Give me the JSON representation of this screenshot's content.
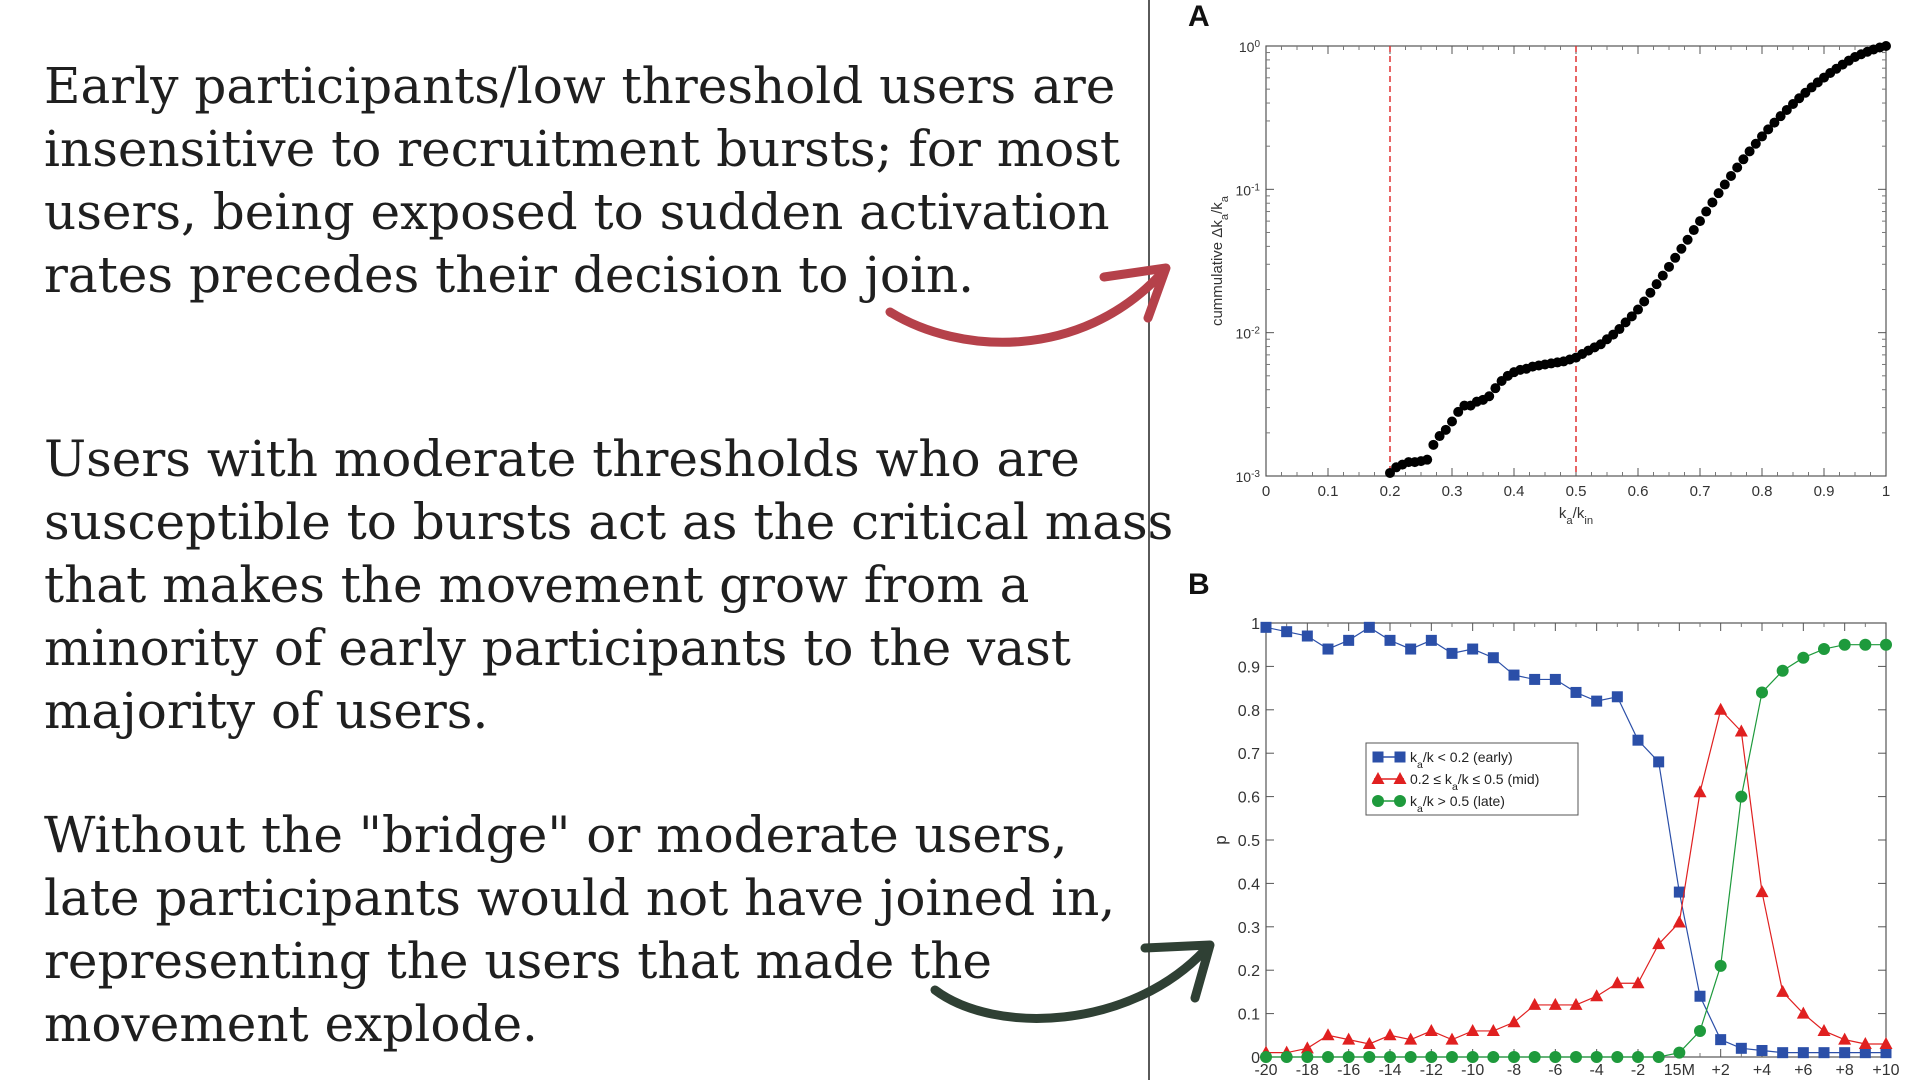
{
  "text": {
    "para1": [
      "Early participants/low threshold users are",
      "insensitive to recruitment bursts; for most",
      "users, being exposed to sudden activation",
      "rates precedes their decision to join."
    ],
    "para2": [
      "Users with moderate thresholds who are",
      "susceptible to bursts act as the critical mass",
      "that makes the movement grow from a",
      "minority of early participants to the vast",
      "majority of users."
    ],
    "para3": [
      "Without the \"bridge\" or moderate users,",
      "late participants would not have joined in,",
      "representing the users that made the",
      "movement explode."
    ]
  },
  "colors": {
    "arrow_top": "#b5414a",
    "arrow_bottom": "#2f4034",
    "early": "#2b4fa8",
    "mid": "#e02020",
    "late": "#1e9a3c",
    "threshold_line": "#e03030"
  },
  "chart_data": [
    {
      "panel": "A",
      "type": "scatter",
      "xlabel": "k_a/k_in",
      "ylabel": "cummulative Δk_a/k_a",
      "xlim": [
        0,
        1
      ],
      "ylim": [
        0.001,
        1
      ],
      "yscale": "log",
      "xticks": [
        "0",
        "0.1",
        "0.2",
        "0.3",
        "0.4",
        "0.5",
        "0.6",
        "0.7",
        "0.8",
        "0.9",
        "1"
      ],
      "yticks": [
        {
          "base": "10",
          "exp": "-3"
        },
        {
          "base": "10",
          "exp": "-2"
        },
        {
          "base": "10",
          "exp": "-1"
        },
        {
          "base": "10",
          "exp": "0"
        }
      ],
      "vlines": [
        0.2,
        0.5
      ],
      "x": [
        0.2,
        0.21,
        0.22,
        0.23,
        0.24,
        0.25,
        0.26,
        0.27,
        0.28,
        0.29,
        0.3,
        0.31,
        0.32,
        0.33,
        0.34,
        0.35,
        0.36,
        0.37,
        0.38,
        0.39,
        0.4,
        0.41,
        0.42,
        0.43,
        0.44,
        0.45,
        0.46,
        0.47,
        0.48,
        0.49,
        0.5,
        0.51,
        0.52,
        0.53,
        0.54,
        0.55,
        0.56,
        0.57,
        0.58,
        0.59,
        0.6,
        0.61,
        0.62,
        0.63,
        0.64,
        0.65,
        0.66,
        0.67,
        0.68,
        0.69,
        0.7,
        0.71,
        0.72,
        0.73,
        0.74,
        0.75,
        0.76,
        0.77,
        0.78,
        0.79,
        0.8,
        0.81,
        0.82,
        0.83,
        0.84,
        0.85,
        0.86,
        0.87,
        0.88,
        0.89,
        0.9,
        0.91,
        0.92,
        0.93,
        0.94,
        0.95,
        0.96,
        0.97,
        0.98,
        0.99,
        1.0
      ],
      "y": [
        0.00105,
        0.00115,
        0.0012,
        0.00125,
        0.00125,
        0.00127,
        0.0013,
        0.00165,
        0.0019,
        0.0021,
        0.0024,
        0.0028,
        0.0031,
        0.0031,
        0.0033,
        0.0034,
        0.0036,
        0.0041,
        0.0046,
        0.005,
        0.0053,
        0.0055,
        0.0056,
        0.0058,
        0.0059,
        0.006,
        0.0061,
        0.0062,
        0.0063,
        0.0065,
        0.0067,
        0.0071,
        0.0075,
        0.0079,
        0.0083,
        0.009,
        0.0097,
        0.0106,
        0.0118,
        0.013,
        0.0145,
        0.0165,
        0.019,
        0.0218,
        0.025,
        0.0288,
        0.0333,
        0.0385,
        0.0445,
        0.052,
        0.06,
        0.07,
        0.081,
        0.094,
        0.108,
        0.124,
        0.142,
        0.162,
        0.184,
        0.208,
        0.234,
        0.262,
        0.292,
        0.324,
        0.358,
        0.394,
        0.432,
        0.472,
        0.514,
        0.558,
        0.602,
        0.648,
        0.694,
        0.742,
        0.79,
        0.838,
        0.876,
        0.912,
        0.946,
        0.976,
        1.0
      ]
    },
    {
      "panel": "B",
      "type": "line",
      "ylabel": "p",
      "ylim": [
        0,
        1
      ],
      "x": [
        -20,
        -19,
        -18,
        -17,
        -16,
        -15,
        -14,
        -13,
        -12,
        -11,
        -10,
        -9,
        -8,
        -7,
        -6,
        -5,
        -4,
        -3,
        -2,
        -1,
        0,
        1,
        2,
        3,
        4,
        5,
        6,
        7,
        8,
        9,
        10
      ],
      "xtick_values": [
        -20,
        -18,
        -16,
        -14,
        -12,
        -10,
        -8,
        -6,
        -4,
        -2,
        0,
        2,
        4,
        6,
        8,
        10
      ],
      "xtick_labels": [
        "-20",
        "-18",
        "-16",
        "-14",
        "-12",
        "-10",
        "-8",
        "-6",
        "-4",
        "-2",
        "15M",
        "+2",
        "+4",
        "+6",
        "+8",
        "+10"
      ],
      "yticks": [
        "0",
        "0.1",
        "0.2",
        "0.3",
        "0.4",
        "0.5",
        "0.6",
        "0.7",
        "0.8",
        "0.9",
        "1"
      ],
      "legend_position": "center-left",
      "series": [
        {
          "name": "k_a/k < 0.2 (early)",
          "marker": "square",
          "values": [
            0.99,
            0.98,
            0.97,
            0.94,
            0.96,
            0.99,
            0.96,
            0.94,
            0.96,
            0.93,
            0.94,
            0.92,
            0.88,
            0.87,
            0.87,
            0.84,
            0.82,
            0.83,
            0.73,
            0.68,
            0.38,
            0.14,
            0.04,
            0.02,
            0.015,
            0.01,
            0.01,
            0.01,
            0.01,
            0.01,
            0.01
          ]
        },
        {
          "name": "0.2 ≤ k_a/k ≤ 0.5 (mid)",
          "marker": "triangle",
          "values": [
            0.01,
            0.01,
            0.02,
            0.05,
            0.04,
            0.03,
            0.05,
            0.04,
            0.06,
            0.04,
            0.06,
            0.06,
            0.08,
            0.12,
            0.12,
            0.12,
            0.14,
            0.17,
            0.17,
            0.26,
            0.31,
            0.61,
            0.8,
            0.75,
            0.38,
            0.15,
            0.1,
            0.06,
            0.04,
            0.03,
            0.03
          ]
        },
        {
          "name": "k_a/k > 0.5 (late)",
          "marker": "circle",
          "values": [
            0.0,
            0.0,
            0.0,
            0.0,
            0.0,
            0.0,
            0.0,
            0.0,
            0.0,
            0.0,
            0.0,
            0.0,
            0.0,
            0.0,
            0.0,
            0.0,
            0.0,
            0.0,
            0.0,
            0.0,
            0.01,
            0.06,
            0.21,
            0.6,
            0.84,
            0.89,
            0.92,
            0.94,
            0.95,
            0.95,
            0.95
          ]
        }
      ]
    }
  ]
}
